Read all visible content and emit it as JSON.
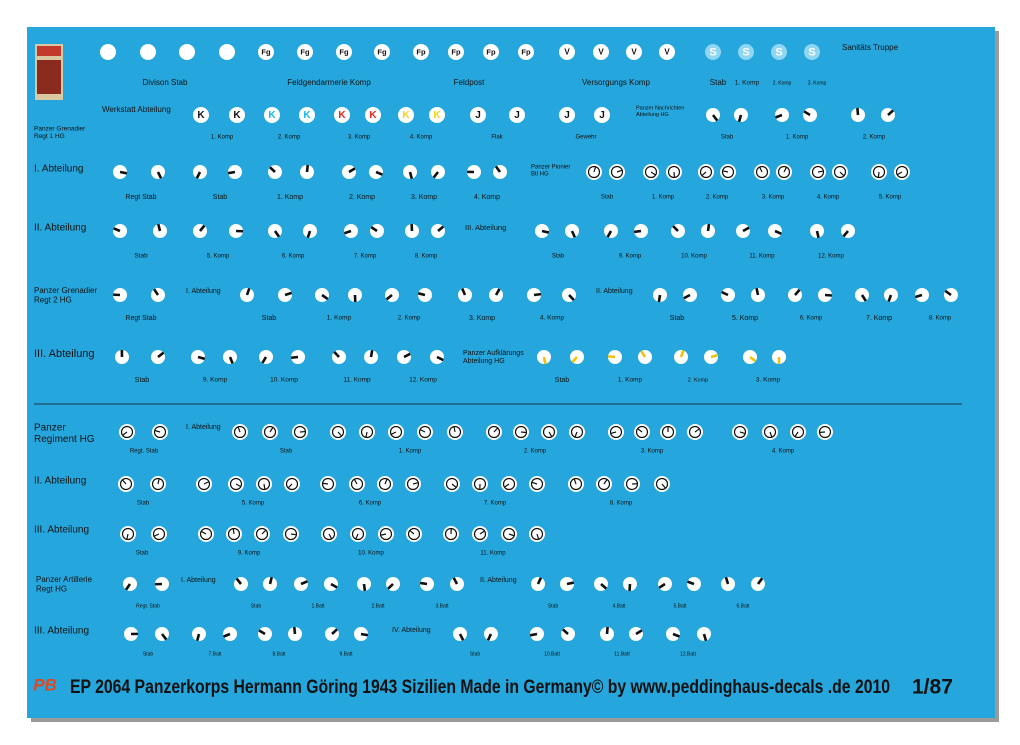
{
  "symbols": {
    "fg": "Fg",
    "fp": "Fp",
    "v": "V",
    "s": "S",
    "k": "K",
    "j": "J"
  },
  "headings": [
    [
      "Sanitäts Truppe"
    ],
    [
      "Werkstatt Abteilung"
    ],
    [
      "Panzer Nachrichten",
      "Abteilung HG"
    ],
    [
      "Panzer Grenadier",
      "Regt 1 HG"
    ],
    [
      "I. Abteilung"
    ],
    [
      "Panzer Pionier",
      "Btl HG"
    ],
    [
      "II. Abteilung"
    ],
    [
      "III. Abteilung"
    ],
    [
      "Panzer Grenadier",
      "Regt 2 HG"
    ],
    [
      "I. Abteilung"
    ],
    [
      "II. Abteilung"
    ],
    [
      "III. Abteilung"
    ],
    [
      "Panzer Aufklärungs",
      "Abteilung HG"
    ],
    [
      "Panzer",
      "Regiment HG"
    ],
    [
      "I. Abteilung"
    ],
    [
      "II. Abteilung"
    ],
    [
      "III. Abteilung"
    ],
    [
      "Panzer Artillerie",
      "Regt  HG"
    ],
    [
      "I. Abteilung"
    ],
    [
      "II. Abteilung"
    ],
    [
      "III. Abteilung"
    ],
    [
      "IV. Abteilung"
    ]
  ],
  "captions": [
    "Divison Stab",
    "Feldgendarmerie Komp",
    "Feldpost",
    "Versorgungs Komp",
    "Stab",
    "1. Komp",
    "2. Komp",
    "3. Komp",
    "1. Komp",
    "2. Komp",
    "3. Komp",
    "4. Komp",
    "Flak",
    "Gewehr",
    "Stab",
    "1. Komp",
    "2. Komp",
    "Regt Stab",
    "Stab",
    "1. Komp",
    "2. Komp",
    "3. Komp",
    "4. Komp",
    "Stab",
    "1. Komp",
    "2. Komp",
    "3. Komp",
    "4. Komp",
    "5. Komp",
    "Stab",
    "5. Komp",
    "6. Komp",
    "7. Komp",
    "8. Komp",
    "Stab",
    "9. Komp",
    "10. Komp",
    "11. Komp",
    "12. Komp",
    "Regt Stab",
    "Stab",
    "1. Komp",
    "2. Komp",
    "3. Komp",
    "4. Komp",
    "Stab",
    "5. Komp",
    "6. Komp",
    "7. Komp",
    "8. Komp",
    "Stab",
    "9. Komp",
    "10. Komp",
    "11. Komp",
    "12. Komp",
    "Stab",
    "1. Komp",
    "2. Komp",
    "3. Komp",
    "Regt. Stab",
    "Stab",
    "1. Komp",
    "2. Komp",
    "3. Komp",
    "4. Komp",
    "Stab",
    "5. Komp",
    "6. Komp",
    "7. Komp",
    "8. Komp",
    "Stab",
    "9. Komp",
    "10. Komp",
    "11. Komp",
    "Regt. Stab",
    "Stab",
    "1.Batt",
    "2.Batt",
    "3.Batt",
    "Stab",
    "4.Batt",
    "5.Batt",
    "6.Batt",
    "Stab",
    "7.Batt",
    "8.Batt",
    "9.Batt",
    "Stab",
    "10.Batt",
    "11.Batt",
    "12.Batt"
  ],
  "footer": {
    "logo": "PB",
    "text": "EP 2064 Panzerkorps Hermann Göring 1943 Sizilien  Made in Germany© by www.peddinghaus-decals .de 2010",
    "scale": "1/87"
  }
}
